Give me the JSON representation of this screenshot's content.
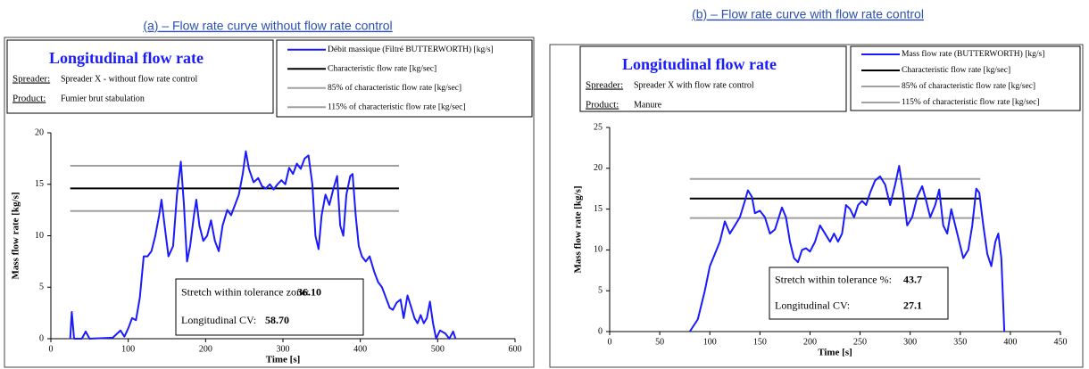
{
  "chart_data": [
    {
      "type": "line",
      "title": "(a) – Flow rate curve without flow rate control",
      "panel_title": "Longitudinal flow rate",
      "spreader_label": "Spreader:",
      "spreader": "Spreader X - without flow rate control",
      "product_label": "Product:",
      "product": "Fumier brut stabulation",
      "annotations": [
        {
          "label": "Stretch within tolerance zone:",
          "value": "36.10"
        },
        {
          "label": "Longitudinal CV:",
          "value": "58.70"
        }
      ],
      "xlabel": "Time [s]",
      "ylabel": "Mass flow rate [kg/s]",
      "xlim": [
        0,
        600
      ],
      "xticks": [
        0,
        100,
        200,
        300,
        400,
        500,
        600
      ],
      "ylim": [
        0,
        20
      ],
      "yticks": [
        0,
        5,
        10,
        15,
        20
      ],
      "series": [
        {
          "name": "Débit massique (Filtré BUTTERWORTH) [kg/s]",
          "color": "#1a1aff",
          "width": 2,
          "x": [
            25,
            27,
            30,
            40,
            45,
            50,
            80,
            90,
            95,
            100,
            105,
            110,
            115,
            120,
            125,
            130,
            135,
            140,
            143,
            147,
            152,
            158,
            163,
            168,
            172,
            176,
            180,
            185,
            188,
            192,
            197,
            202,
            207,
            212,
            217,
            222,
            228,
            233,
            238,
            243,
            248,
            252,
            256,
            262,
            268,
            273,
            278,
            283,
            288,
            293,
            298,
            303,
            308,
            313,
            318,
            323,
            328,
            333,
            338,
            342,
            346,
            350,
            355,
            360,
            365,
            370,
            374,
            378,
            382,
            387,
            390,
            394,
            398,
            402,
            407,
            412,
            418,
            423,
            428,
            433,
            438,
            442,
            447,
            452,
            456,
            461,
            466,
            470,
            474,
            478,
            482,
            486,
            490,
            494,
            498,
            503,
            510,
            515,
            520,
            523
          ],
          "values": [
            0,
            2.6,
            0,
            0,
            0.7,
            0,
            0.1,
            0.8,
            0.2,
            1,
            2,
            1.8,
            4,
            8,
            8,
            8.5,
            10,
            12,
            13.5,
            11,
            8,
            9,
            14,
            17.2,
            13,
            7.5,
            9,
            12,
            13.5,
            11,
            9.5,
            10,
            11.5,
            9.5,
            8.5,
            11,
            12.5,
            12,
            13,
            14,
            16,
            18.2,
            16.5,
            15.2,
            15.6,
            14.8,
            14.6,
            15,
            14.5,
            15,
            15.4,
            15,
            16.6,
            16,
            17,
            16.5,
            17.5,
            17.8,
            15,
            10,
            8.7,
            12,
            14,
            13,
            14.5,
            15.8,
            11,
            10,
            14,
            15.8,
            16,
            12,
            9,
            8,
            7.5,
            8,
            6.5,
            5.5,
            5,
            4,
            3,
            2.8,
            3.5,
            3.8,
            2,
            4.2,
            3,
            2,
            1.5,
            2.3,
            1.5,
            2,
            3.6,
            1.5,
            0,
            0.8,
            0.5,
            0,
            0.7,
            0
          ]
        },
        {
          "name": "Characteristic flow rate [kg/sec]",
          "color": "#000000",
          "width": 2,
          "x": [
            25,
            450
          ],
          "values": [
            14.6,
            14.6
          ]
        },
        {
          "name": "85% of characteristic flow rate [kg/sec]",
          "color": "#a0a0a0",
          "width": 2,
          "x": [
            25,
            450
          ],
          "values": [
            12.4,
            12.4
          ]
        },
        {
          "name": "115% of characteristic flow rate [kg/sec]",
          "color": "#a0a0a0",
          "width": 2,
          "x": [
            25,
            450
          ],
          "values": [
            16.8,
            16.8
          ]
        }
      ]
    },
    {
      "type": "line",
      "title": "(b) – Flow rate curve with flow rate control",
      "panel_title": "Longitudinal flow rate",
      "spreader_label": "Spreader:",
      "spreader": "Spreader X with flow rate control",
      "product_label": "Product:",
      "product": "Manure",
      "annotations": [
        {
          "label": "Stretch within tolerance %:",
          "value": "43.7"
        },
        {
          "label": "Longitudinal CV:",
          "value": "27.1"
        }
      ],
      "xlabel": "Time [s]",
      "ylabel": "Mass flow rate [kg/s]",
      "xlim": [
        0,
        450
      ],
      "xticks": [
        0,
        50,
        100,
        150,
        200,
        250,
        300,
        350,
        400,
        450
      ],
      "ylim": [
        0,
        25
      ],
      "yticks": [
        0,
        5,
        10,
        15,
        20,
        25
      ],
      "series": [
        {
          "name": "Mass flow rate (BUTTERWORTH) [kg/s]",
          "color": "#1a1aff",
          "width": 2,
          "x": [
            80,
            88,
            95,
            100,
            105,
            110,
            115,
            120,
            125,
            130,
            135,
            138,
            142,
            145,
            150,
            155,
            160,
            165,
            172,
            176,
            180,
            184,
            188,
            192,
            196,
            200,
            205,
            210,
            215,
            220,
            224,
            228,
            232,
            236,
            240,
            244,
            248,
            252,
            256,
            260,
            265,
            270,
            275,
            280,
            285,
            289,
            293,
            297,
            302,
            307,
            312,
            316,
            320,
            325,
            329,
            333,
            337,
            341,
            345,
            349,
            353,
            358,
            362,
            366,
            369,
            373,
            377,
            381,
            385,
            388,
            391,
            394
          ],
          "values": [
            0,
            1.5,
            5,
            8,
            9.5,
            11,
            13.5,
            12,
            13,
            14,
            16,
            17.3,
            16.5,
            14.5,
            14.8,
            14,
            12,
            12.5,
            15.2,
            14,
            11,
            9,
            8.5,
            10,
            10.2,
            9.8,
            11,
            13,
            12,
            11,
            12,
            11,
            12,
            15.5,
            15,
            14,
            15.5,
            16,
            15.5,
            17,
            18.5,
            19,
            18,
            15.5,
            18,
            20.3,
            17,
            13,
            14,
            16.5,
            17.8,
            16,
            14,
            15.5,
            17.4,
            13,
            12,
            15,
            13,
            11,
            9,
            10,
            13,
            17.5,
            17,
            13,
            9.5,
            8,
            11,
            12,
            9,
            0
          ]
        },
        {
          "name": "Characteristic flow rate [kg/sec]",
          "color": "#000000",
          "width": 2,
          "x": [
            80,
            370
          ],
          "values": [
            16.3,
            16.3
          ]
        },
        {
          "name": "85% of characteristic flow rate [kg/sec]",
          "color": "#a0a0a0",
          "width": 2,
          "x": [
            80,
            370
          ],
          "values": [
            13.9,
            13.9
          ]
        },
        {
          "name": "115% of characteristic flow rate [kg/sec]",
          "color": "#a0a0a0",
          "width": 2,
          "x": [
            80,
            370
          ],
          "values": [
            18.7,
            18.7
          ]
        }
      ]
    }
  ]
}
